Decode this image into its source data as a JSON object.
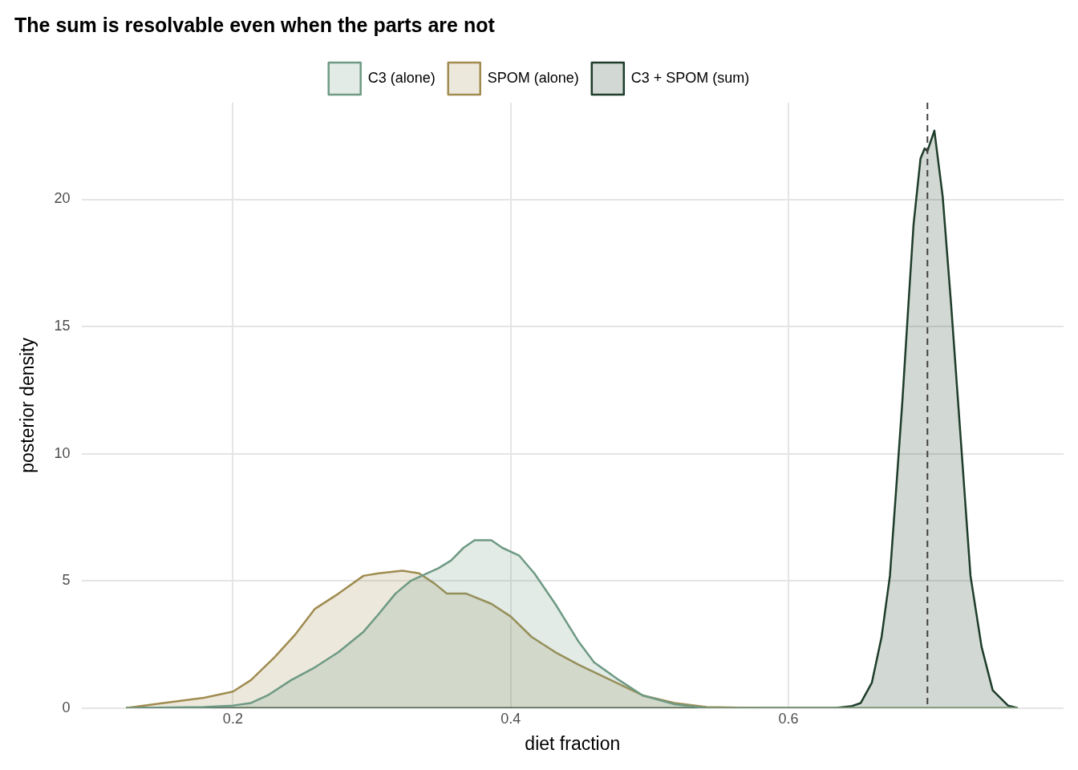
{
  "chart_data": {
    "type": "area",
    "title": "The sum is resolvable even when the parts are not",
    "xlabel": "diet fraction",
    "ylabel": "posterior density",
    "xlim": [
      0.091,
      0.798
    ],
    "ylim": [
      0,
      23.8
    ],
    "xticks": [
      0.2,
      0.4,
      0.6
    ],
    "yticks": [
      0,
      5,
      10,
      15,
      20
    ],
    "grid": true,
    "legend": "top",
    "series": [
      {
        "name": "C3 (alone)",
        "color": "#6e9a84",
        "x": [
          0.123,
          0.179,
          0.2,
          0.213,
          0.225,
          0.242,
          0.259,
          0.276,
          0.294,
          0.305,
          0.317,
          0.328,
          0.34,
          0.348,
          0.357,
          0.366,
          0.374,
          0.386,
          0.394,
          0.406,
          0.417,
          0.432,
          0.449,
          0.46,
          0.478,
          0.495,
          0.518,
          0.541,
          0.765
        ],
        "values": [
          0,
          0.04,
          0.1,
          0.2,
          0.5,
          1.1,
          1.6,
          2.2,
          3.0,
          3.7,
          4.5,
          5.0,
          5.3,
          5.5,
          5.8,
          6.3,
          6.6,
          6.6,
          6.3,
          6.0,
          5.3,
          4.1,
          2.6,
          1.8,
          1.1,
          0.5,
          0.15,
          0,
          0
        ]
      },
      {
        "name": "SPOM (alone)",
        "color": "#a08c50",
        "x": [
          0.123,
          0.15,
          0.179,
          0.2,
          0.213,
          0.23,
          0.245,
          0.259,
          0.276,
          0.294,
          0.305,
          0.322,
          0.334,
          0.345,
          0.354,
          0.368,
          0.386,
          0.4,
          0.415,
          0.432,
          0.449,
          0.472,
          0.495,
          0.518,
          0.541,
          0.581,
          0.638,
          0.765
        ],
        "values": [
          0,
          0.2,
          0.4,
          0.65,
          1.1,
          2.0,
          2.9,
          3.9,
          4.5,
          5.2,
          5.3,
          5.4,
          5.3,
          4.9,
          4.5,
          4.5,
          4.1,
          3.6,
          2.8,
          2.2,
          1.7,
          1.1,
          0.5,
          0.2,
          0.04,
          0,
          0,
          0
        ]
      },
      {
        "name": "C3 + SPOM (sum)",
        "color": "#1e3d2a",
        "x": [
          0.123,
          0.633,
          0.645,
          0.652,
          0.66,
          0.667,
          0.673,
          0.678,
          0.682,
          0.686,
          0.69,
          0.695,
          0.698,
          0.7,
          0.705,
          0.711,
          0.717,
          0.725,
          0.731,
          0.739,
          0.747,
          0.758,
          0.765
        ],
        "values": [
          0,
          0,
          0.07,
          0.2,
          1.0,
          2.8,
          5.2,
          9.0,
          12.1,
          15.6,
          19.0,
          21.6,
          22.0,
          21.9,
          22.7,
          20.1,
          15.9,
          9.8,
          5.2,
          2.4,
          0.7,
          0.1,
          0
        ]
      }
    ],
    "ref_lines": [
      {
        "axis": "x",
        "value": 0.7,
        "color": "#404040",
        "line_style": "dashed"
      }
    ]
  }
}
